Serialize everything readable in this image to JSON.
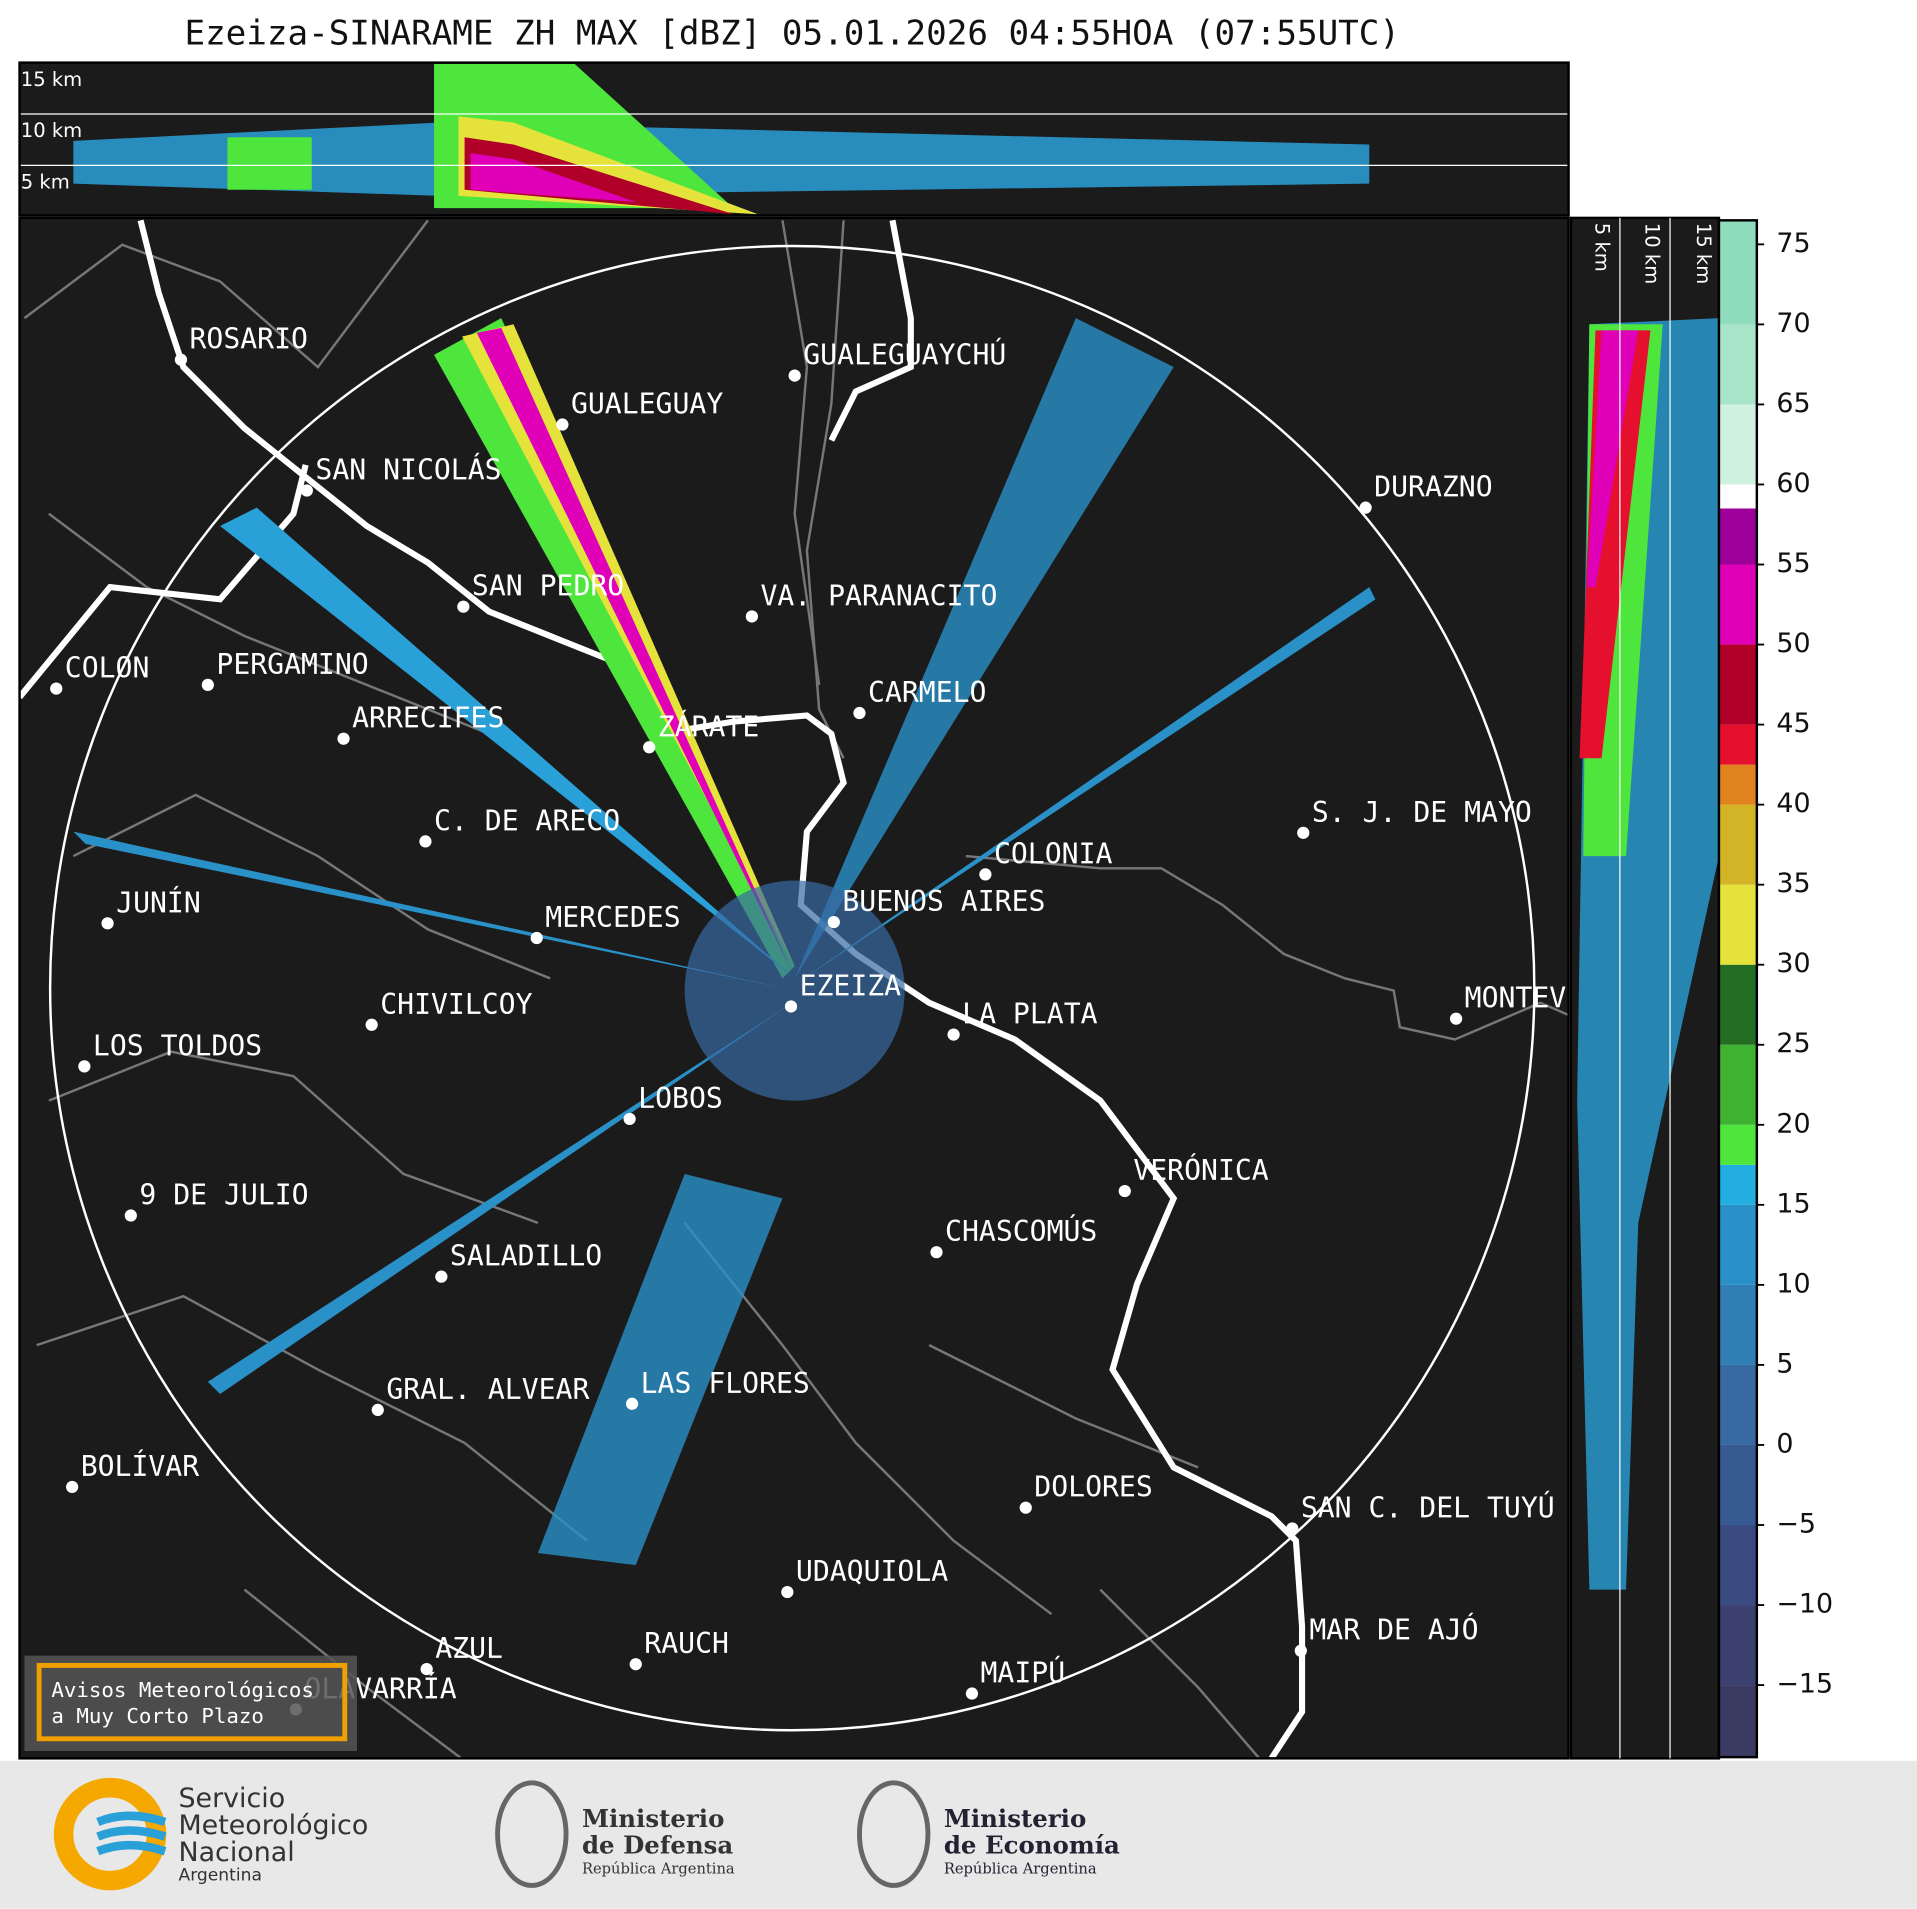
{
  "title": "Ezeiza-SINARAME ZH MAX [dBZ] 05.01.2026 04:55HOA (07:55UTC)",
  "top_profile": {
    "height_labels": [
      "15 km",
      "10 km",
      "5 km"
    ]
  },
  "side_profile": {
    "height_labels": [
      "5 km",
      "10 km",
      "15 km"
    ]
  },
  "cities": [
    "ROSARIO",
    "GUALEGUAYCHÚ",
    "GUALEGUAY",
    "SAN NICOLÁS",
    "DURAZNO",
    "SAN PEDRO",
    "VA. PARANACITO",
    "COLON",
    "PERGAMINO",
    "CARMELO",
    "ARRECIFES",
    "ZÁRATE",
    "S. J. DE MAYO",
    "C. DE ARECO",
    "COLONIA",
    "BUENOS AIRES",
    "JUNÍN",
    "MERCEDES",
    "EZEIZA",
    "MONTEVIDEO",
    "CHIVILCOY",
    "LA PLATA",
    "LOS TOLDOS",
    "LOBOS",
    "VERÓNICA",
    "9 DE JULIO",
    "CHASCOMÚS",
    "SALADILLO",
    "GRAL. ALVEAR",
    "LAS FLORES",
    "BOLÍVAR",
    "DOLORES",
    "SAN C. DEL TUYÚ",
    "UDAQUIOLA",
    "MAR DE AJÓ",
    "AZUL",
    "RAUCH",
    "OLAVARRÍA",
    "MAIPÚ"
  ],
  "warning_box": [
    "Avisos Meteorológicos",
    "a Muy Corto Plazo"
  ],
  "colorbar": {
    "lim": [
      -19.5,
      76.5
    ],
    "ticks": [
      {
        "value": -15,
        "label": "−15"
      },
      {
        "value": -10,
        "label": "−10"
      },
      {
        "value": -5,
        "label": "−5"
      },
      0,
      5,
      10,
      15,
      20,
      25,
      30,
      35,
      40,
      45,
      50,
      55,
      60,
      65,
      70,
      75
    ],
    "bands": [
      {
        "from": -19.5,
        "to": -15,
        "color": "#3a3a62"
      },
      {
        "from": -15,
        "to": -10,
        "color": "#3b4070"
      },
      {
        "from": -10,
        "to": -5,
        "color": "#3a4b82"
      },
      {
        "from": -5,
        "to": 0,
        "color": "#385a92"
      },
      {
        "from": 0,
        "to": 5,
        "color": "#376aa2"
      },
      {
        "from": 5,
        "to": 10,
        "color": "#317eb6"
      },
      {
        "from": 10,
        "to": 15,
        "color": "#2a91c8"
      },
      {
        "from": 15,
        "to": 17.5,
        "color": "#22aee0"
      },
      {
        "from": 17.5,
        "to": 20,
        "color": "#4ee63c"
      },
      {
        "from": 20,
        "to": 25,
        "color": "#3fb232"
      },
      {
        "from": 25,
        "to": 30,
        "color": "#236e22"
      },
      {
        "from": 30,
        "to": 35,
        "color": "#e6e23c"
      },
      {
        "from": 35,
        "to": 40,
        "color": "#d2b426"
      },
      {
        "from": 40,
        "to": 42.5,
        "color": "#e0821e"
      },
      {
        "from": 42.5,
        "to": 45,
        "color": "#e4102e"
      },
      {
        "from": 45,
        "to": 50,
        "color": "#b0002a"
      },
      {
        "from": 50,
        "to": 55,
        "color": "#e000b8"
      },
      {
        "from": 55,
        "to": 58.5,
        "color": "#9c0098"
      },
      {
        "from": 58.5,
        "to": 60,
        "color": "#ffffff"
      },
      {
        "from": 60,
        "to": 65,
        "color": "#d0f0e0"
      },
      {
        "from": 65,
        "to": 70,
        "color": "#a8e4c8"
      },
      {
        "from": 70,
        "to": 76.5,
        "color": "#8edcbc"
      }
    ]
  },
  "logos": [
    {
      "lines": [
        "Servicio",
        "Meteorológico",
        "Nacional"
      ],
      "sub": "Argentina"
    },
    {
      "lines": [
        "Ministerio",
        "de Defensa"
      ],
      "sub": "República Argentina"
    },
    {
      "lines": [
        "Ministerio",
        "de Economía"
      ],
      "sub": "República Argentina"
    }
  ]
}
